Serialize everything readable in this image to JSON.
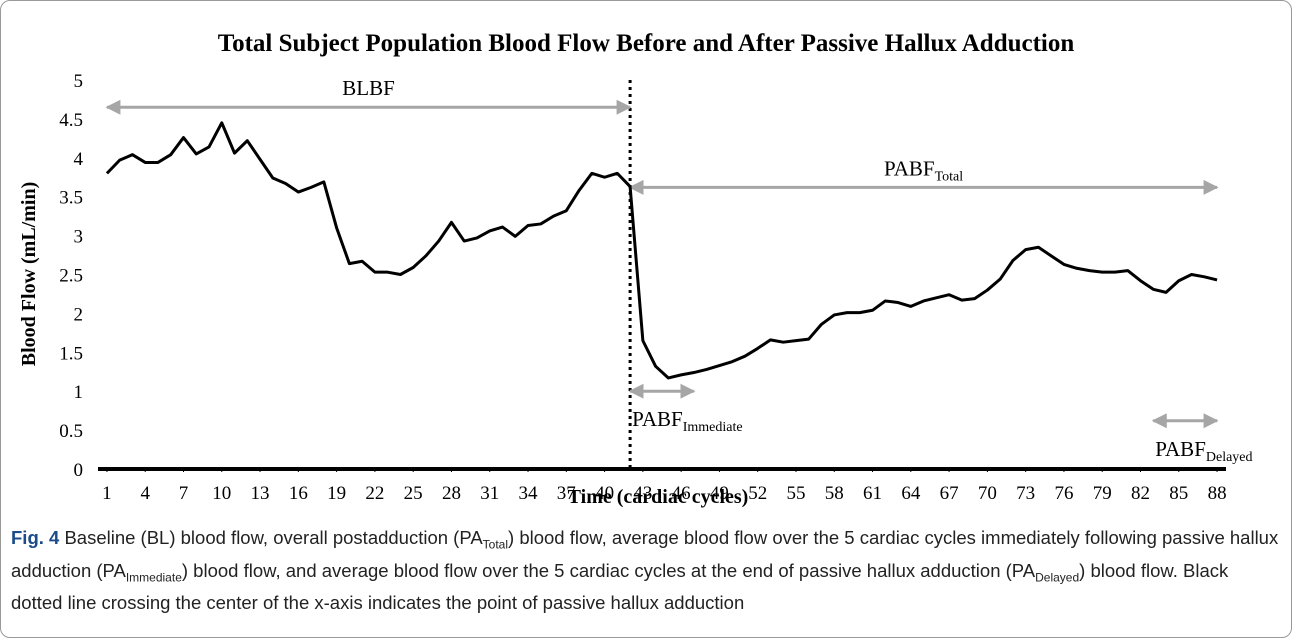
{
  "chart_data": {
    "type": "line",
    "title": "Total Subject Population Blood Flow Before and After Passive Hallux Adduction",
    "x_label": "Time (cardiac cycles)",
    "y_label": "Blood Flow (mL/min)",
    "x": [
      1,
      2,
      3,
      4,
      5,
      6,
      7,
      8,
      9,
      10,
      11,
      12,
      13,
      14,
      15,
      16,
      17,
      18,
      19,
      20,
      21,
      22,
      23,
      24,
      25,
      26,
      27,
      28,
      29,
      30,
      31,
      32,
      33,
      34,
      35,
      36,
      37,
      38,
      39,
      40,
      41,
      42,
      43,
      44,
      45,
      46,
      47,
      48,
      49,
      50,
      51,
      52,
      53,
      54,
      55,
      56,
      57,
      58,
      59,
      60,
      61,
      62,
      63,
      64,
      65,
      66,
      67,
      68,
      69,
      70,
      71,
      72,
      73,
      74,
      75,
      76,
      77,
      78,
      79,
      80,
      81,
      82,
      83,
      84,
      85,
      86,
      87,
      88
    ],
    "values": [
      3.8,
      3.97,
      4.04,
      3.94,
      3.94,
      4.04,
      4.26,
      4.05,
      4.14,
      4.45,
      4.06,
      4.22,
      3.98,
      3.74,
      3.67,
      3.56,
      3.62,
      3.69,
      3.1,
      2.64,
      2.67,
      2.53,
      2.53,
      2.5,
      2.59,
      2.74,
      2.93,
      3.17,
      2.93,
      2.97,
      3.06,
      3.11,
      2.99,
      3.13,
      3.15,
      3.25,
      3.32,
      3.58,
      3.8,
      3.75,
      3.8,
      3.63,
      1.65,
      1.32,
      1.17,
      1.21,
      1.24,
      1.28,
      1.33,
      1.38,
      1.45,
      1.55,
      1.66,
      1.63,
      1.65,
      1.67,
      1.86,
      1.98,
      2.01,
      2.01,
      2.04,
      2.16,
      2.14,
      2.09,
      2.16,
      2.2,
      2.24,
      2.17,
      2.19,
      2.3,
      2.44,
      2.68,
      2.82,
      2.85,
      2.74,
      2.63,
      2.58,
      2.55,
      2.53,
      2.53,
      2.55,
      2.42,
      2.31,
      2.27,
      2.42,
      2.5,
      2.47,
      2.43
    ],
    "color": "#000000",
    "xlim": [
      0.3,
      88.7
    ],
    "xticks": [
      1,
      4,
      7,
      10,
      13,
      16,
      19,
      22,
      25,
      28,
      31,
      34,
      37,
      40,
      43,
      46,
      49,
      52,
      55,
      58,
      61,
      64,
      67,
      70,
      73,
      76,
      79,
      82,
      85,
      88
    ],
    "ylim": [
      0,
      5
    ],
    "yticks": [
      0,
      0.5,
      1,
      1.5,
      2,
      2.5,
      3,
      3.5,
      4,
      4.5,
      5
    ],
    "grid": false,
    "vline": {
      "x": 42
    },
    "annotations": [
      {
        "text": "BLBF",
        "sub": "",
        "x": [
          1,
          42
        ],
        "y": 4.65,
        "position": "above"
      },
      {
        "text": "PABF",
        "sub": "Total",
        "x": [
          42,
          88
        ],
        "y": 3.62,
        "position": "above"
      },
      {
        "text": "PABF",
        "sub": "Immediate",
        "x": [
          42,
          47
        ],
        "y": 1.0,
        "position": "below"
      },
      {
        "text": "PABF",
        "sub": "Delayed",
        "x": [
          83,
          88
        ],
        "y": 0.62,
        "position": "below"
      }
    ]
  },
  "caption": {
    "label": "Fig. 4",
    "text": [
      " Baseline (BL) blood flow, overall postadduction (PA",
      ") blood flow, average blood flow over the 5 cardiac cycles immediately following passive hallux adduction (PA",
      ") blood flow, and average blood flow over the 5 cardiac cycles at the end of passive hallux adduction (PA",
      ") blood flow. Black dotted line crossing the center of the x-axis indicates the point of passive hallux adduction"
    ],
    "subs": [
      "Total",
      "Immediate",
      "Delayed"
    ]
  }
}
